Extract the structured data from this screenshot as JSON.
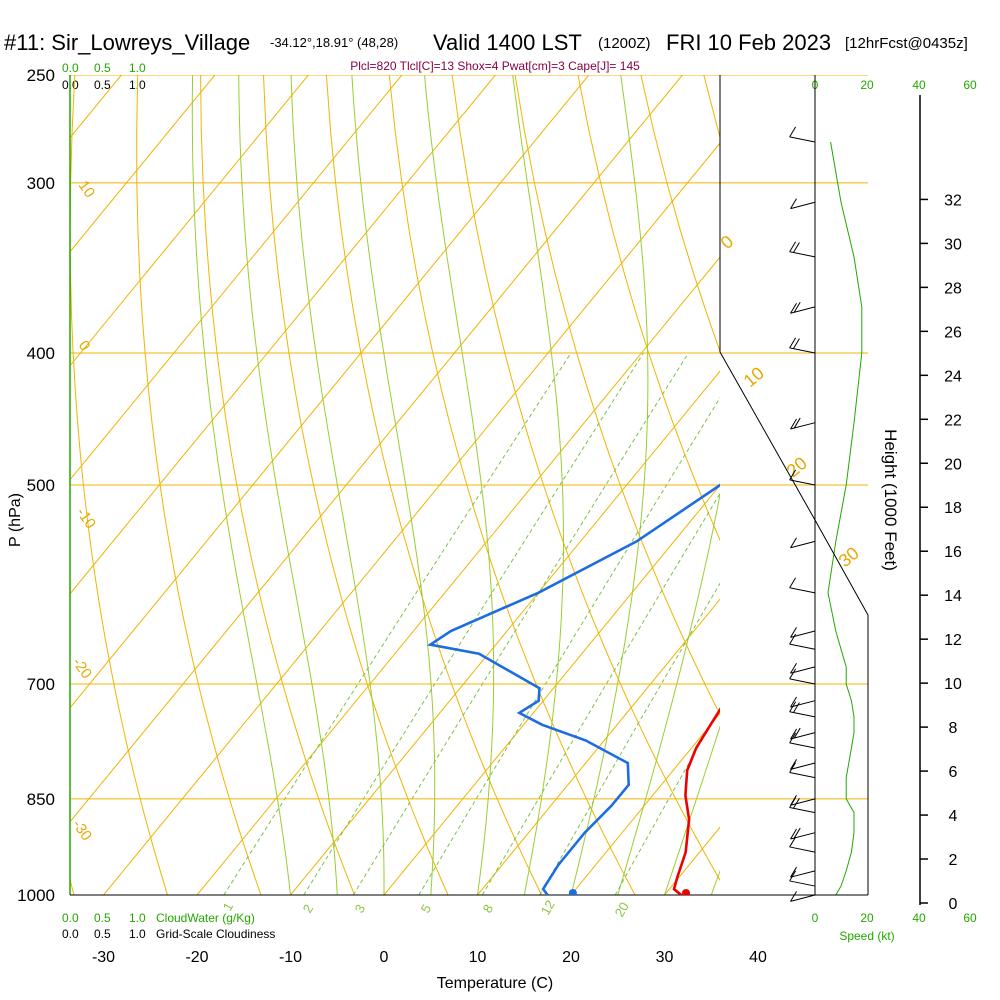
{
  "header": {
    "station": "#11: Sir_Lowreys_Village",
    "coords": "-34.12°,18.91° (48,28)",
    "valid": "Valid 1400 LST",
    "utc": "(1200Z)",
    "date": "FRI 10 Feb 2023",
    "forecast": "[12hrFcst@0435z]"
  },
  "indices": "Plcl=820 Tlcl[C]=13 Shox=4 Pwat[cm]=3 Cape[J]= 145",
  "cloudwater_scale": {
    "ticks": [
      "0.0",
      "0.5",
      "1.0"
    ],
    "label": "CloudWater (g/Kg)"
  },
  "cloudiness_scale": {
    "ticks": [
      "0.0",
      "0.5",
      "1.0"
    ],
    "label": "Grid-Scale Cloudiness"
  },
  "speed_scale": {
    "ticks": [
      "0",
      "20",
      "40",
      "60"
    ],
    "label": "Speed (kt)"
  },
  "axes": {
    "xlabel": "Temperature (C)",
    "ylabel": "P (hPa)",
    "y2label": "Height (1000 Feet)"
  },
  "chart_data": {
    "type": "line",
    "title": "Skew-T sounding",
    "xlim": [
      -35,
      36
    ],
    "ylim": [
      1000,
      250
    ],
    "temp_ticks": [
      "-30",
      "-20",
      "-10",
      "0",
      "10",
      "20",
      "30",
      "40"
    ],
    "pressure_ticks": [
      "250",
      "300",
      "400",
      "500",
      "700",
      "850",
      "1000"
    ],
    "height_ticks": [
      "0",
      "2",
      "4",
      "6",
      "8",
      "10",
      "12",
      "14",
      "16",
      "18",
      "20",
      "22",
      "24",
      "26",
      "28",
      "30",
      "32"
    ],
    "isotherm_labels": [
      "10",
      "0",
      "-10",
      "-20",
      "-30",
      "0",
      "10",
      "20",
      "30"
    ],
    "mixing_ratio_labels": [
      "1",
      "2",
      "3",
      "5",
      "8",
      "12",
      "20"
    ],
    "series": [
      {
        "name": "Temperature",
        "color": "#ee0000",
        "points": [
          [
            31.8,
            1000
          ],
          [
            30.5,
            990
          ],
          [
            29.8,
            970
          ],
          [
            28.5,
            930
          ],
          [
            26,
            880
          ],
          [
            23.5,
            845
          ],
          [
            21.5,
            810
          ],
          [
            20.5,
            780
          ],
          [
            20,
            750
          ],
          [
            19.5,
            720
          ],
          [
            18.5,
            690
          ],
          [
            18.3,
            670
          ],
          [
            19.5,
            655
          ],
          [
            19.5,
            640
          ],
          [
            18.5,
            610
          ],
          [
            17,
            570
          ],
          [
            15.5,
            530
          ],
          [
            15,
            500
          ],
          [
            14,
            470
          ],
          [
            13,
            445
          ],
          [
            10.5,
            400
          ],
          [
            8,
            370
          ],
          [
            5,
            340
          ],
          [
            2.5,
            315
          ],
          [
            -0.5,
            290
          ],
          [
            -3,
            266
          ]
        ]
      },
      {
        "name": "Dewpoint",
        "color": "#1e6de0",
        "points": [
          [
            17.5,
            1000
          ],
          [
            16.5,
            990
          ],
          [
            16,
            950
          ],
          [
            16,
            900
          ],
          [
            16.5,
            860
          ],
          [
            16.5,
            830
          ],
          [
            14.5,
            800
          ],
          [
            8,
            770
          ],
          [
            2,
            750
          ],
          [
            -1.5,
            735
          ],
          [
            -0.5,
            720
          ],
          [
            -1.5,
            705
          ],
          [
            -5,
            690
          ],
          [
            -11,
            665
          ],
          [
            -17,
            655
          ],
          [
            -16,
            640
          ],
          [
            -10,
            600
          ],
          [
            -4,
            550
          ],
          [
            0,
            500
          ],
          [
            1,
            470
          ],
          [
            0.5,
            440
          ],
          [
            -0.5,
            400
          ],
          [
            -2,
            370
          ],
          [
            -5,
            350
          ],
          [
            -7,
            330
          ],
          [
            -9,
            305
          ],
          [
            -10,
            290
          ],
          [
            -11,
            266
          ]
        ]
      },
      {
        "name": "Parcel",
        "color": "#7a0050",
        "points": [
          [
            13.5,
            400
          ],
          [
            11,
            370
          ],
          [
            8,
            340
          ],
          [
            5,
            315
          ],
          [
            2,
            290
          ],
          [
            -1,
            270
          ]
        ]
      }
    ],
    "surface": {
      "temperature": 32.3,
      "dewpoint": 20.2
    },
    "wind_barbs": [
      [
        1000,
        8
      ],
      [
        985,
        10
      ],
      [
        960,
        12
      ],
      [
        930,
        14
      ],
      [
        900,
        15
      ],
      [
        870,
        15
      ],
      [
        850,
        12
      ],
      [
        820,
        12
      ],
      [
        800,
        13
      ],
      [
        780,
        14
      ],
      [
        760,
        15
      ],
      [
        740,
        15
      ],
      [
        720,
        14
      ],
      [
        700,
        12
      ],
      [
        680,
        12
      ],
      [
        660,
        10
      ],
      [
        640,
        8
      ],
      [
        600,
        5
      ],
      [
        550,
        8
      ],
      [
        500,
        12
      ],
      [
        450,
        15
      ],
      [
        400,
        18
      ],
      [
        370,
        18
      ],
      [
        340,
        15
      ],
      [
        310,
        10
      ],
      [
        280,
        6
      ]
    ]
  }
}
